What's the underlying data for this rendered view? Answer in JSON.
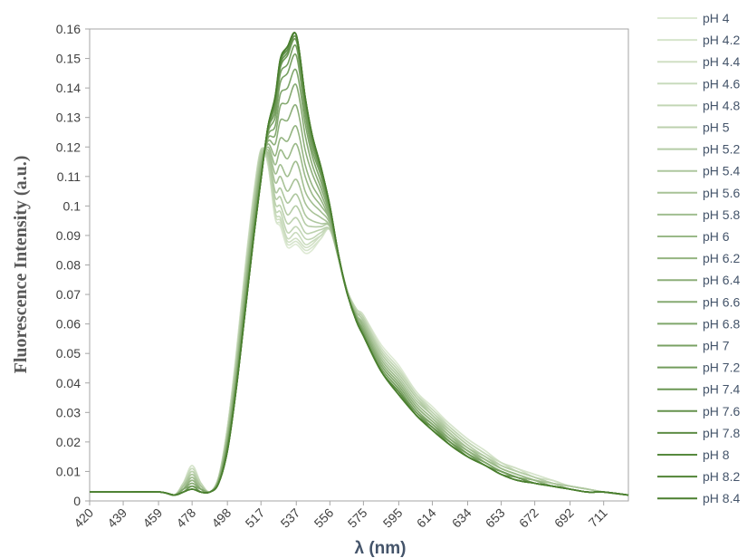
{
  "chart_data": {
    "type": "line",
    "title": "",
    "xlabel": "λ (nm)",
    "ylabel": "Fluorescence Intensity (a.u.)",
    "xlim": [
      420,
      725
    ],
    "ylim": [
      0,
      0.16
    ],
    "yticks": [
      0,
      0.01,
      0.02,
      0.03,
      0.04,
      0.05,
      0.06,
      0.07,
      0.08,
      0.09,
      0.1,
      0.11,
      0.12,
      0.13,
      0.14,
      0.15,
      0.16
    ],
    "yticklabels": [
      "0",
      "0.01",
      "0.02",
      "0.03",
      "0.04",
      "0.05",
      "0.06",
      "0.07",
      "0.08",
      "0.09",
      "0.1",
      "0.11",
      "0.12",
      "0.13",
      "0.14",
      "0.15",
      "0.16"
    ],
    "xticks": [
      420,
      439,
      459,
      478,
      498,
      517,
      537,
      556,
      575,
      595,
      614,
      634,
      653,
      672,
      692,
      711
    ],
    "xticklabels": [
      "420",
      "439",
      "459",
      "478",
      "498",
      "517",
      "537",
      "556",
      "575",
      "595",
      "614",
      "634",
      "653",
      "672",
      "692",
      "711"
    ],
    "grid": false,
    "legend_position": "right",
    "colors": {
      "light": "#dde9d3",
      "dark": "#4a7f2f"
    },
    "x": [
      420,
      440,
      460,
      468,
      473,
      478,
      483,
      488,
      493,
      498,
      503,
      508,
      513,
      517,
      521,
      525,
      528,
      532,
      537,
      542,
      546,
      551,
      556,
      561,
      566,
      571,
      575,
      585,
      595,
      605,
      614,
      624,
      634,
      644,
      653,
      662,
      672,
      682,
      692,
      702,
      711,
      725
    ],
    "series": [
      {
        "name": "pH 4",
        "values": [
          0.003,
          0.003,
          0.003,
          0.002,
          0.006,
          0.012,
          0.006,
          0.003,
          0.008,
          0.025,
          0.05,
          0.079,
          0.105,
          0.119,
          0.114,
          0.096,
          0.093,
          0.086,
          0.087,
          0.084,
          0.085,
          0.089,
          0.092,
          0.082,
          0.071,
          0.065,
          0.063,
          0.053,
          0.046,
          0.037,
          0.032,
          0.026,
          0.021,
          0.017,
          0.013,
          0.011,
          0.009,
          0.007,
          0.005,
          0.004,
          0.003,
          0.002
        ]
      },
      {
        "name": "pH 4.2",
        "values": [
          0.003,
          0.003,
          0.003,
          0.002,
          0.006,
          0.012,
          0.006,
          0.003,
          0.008,
          0.025,
          0.05,
          0.079,
          0.104,
          0.119,
          0.114,
          0.096,
          0.094,
          0.087,
          0.088,
          0.085,
          0.086,
          0.089,
          0.092,
          0.082,
          0.071,
          0.065,
          0.063,
          0.052,
          0.045,
          0.037,
          0.031,
          0.026,
          0.021,
          0.017,
          0.013,
          0.011,
          0.009,
          0.007,
          0.005,
          0.004,
          0.003,
          0.002
        ]
      },
      {
        "name": "pH 4.4",
        "values": [
          0.003,
          0.003,
          0.003,
          0.002,
          0.006,
          0.011,
          0.006,
          0.003,
          0.008,
          0.025,
          0.049,
          0.078,
          0.104,
          0.119,
          0.114,
          0.097,
          0.095,
          0.088,
          0.089,
          0.086,
          0.087,
          0.09,
          0.092,
          0.082,
          0.071,
          0.065,
          0.063,
          0.052,
          0.045,
          0.036,
          0.031,
          0.025,
          0.02,
          0.016,
          0.013,
          0.011,
          0.008,
          0.007,
          0.005,
          0.004,
          0.003,
          0.002
        ]
      },
      {
        "name": "pH 4.6",
        "values": [
          0.003,
          0.003,
          0.003,
          0.002,
          0.006,
          0.011,
          0.006,
          0.003,
          0.008,
          0.024,
          0.049,
          0.078,
          0.104,
          0.119,
          0.115,
          0.098,
          0.096,
          0.089,
          0.091,
          0.087,
          0.088,
          0.09,
          0.092,
          0.082,
          0.071,
          0.065,
          0.062,
          0.051,
          0.044,
          0.036,
          0.031,
          0.025,
          0.02,
          0.016,
          0.013,
          0.01,
          0.008,
          0.006,
          0.005,
          0.004,
          0.003,
          0.002
        ]
      },
      {
        "name": "pH 4.8",
        "values": [
          0.003,
          0.003,
          0.003,
          0.002,
          0.006,
          0.01,
          0.006,
          0.003,
          0.008,
          0.024,
          0.048,
          0.077,
          0.103,
          0.119,
          0.115,
          0.099,
          0.098,
          0.091,
          0.093,
          0.089,
          0.089,
          0.091,
          0.092,
          0.082,
          0.071,
          0.065,
          0.062,
          0.051,
          0.044,
          0.036,
          0.03,
          0.025,
          0.02,
          0.016,
          0.012,
          0.01,
          0.008,
          0.006,
          0.005,
          0.004,
          0.003,
          0.002
        ]
      },
      {
        "name": "pH 5",
        "values": [
          0.003,
          0.003,
          0.003,
          0.002,
          0.005,
          0.01,
          0.005,
          0.003,
          0.008,
          0.024,
          0.048,
          0.076,
          0.102,
          0.118,
          0.116,
          0.101,
          0.1,
          0.094,
          0.096,
          0.091,
          0.091,
          0.092,
          0.092,
          0.082,
          0.071,
          0.064,
          0.062,
          0.05,
          0.043,
          0.035,
          0.03,
          0.024,
          0.019,
          0.015,
          0.012,
          0.01,
          0.008,
          0.006,
          0.005,
          0.004,
          0.003,
          0.002
        ]
      },
      {
        "name": "pH 5.2",
        "values": [
          0.003,
          0.003,
          0.003,
          0.002,
          0.005,
          0.009,
          0.005,
          0.003,
          0.008,
          0.023,
          0.047,
          0.075,
          0.101,
          0.118,
          0.116,
          0.103,
          0.103,
          0.097,
          0.1,
          0.094,
          0.093,
          0.093,
          0.093,
          0.082,
          0.071,
          0.064,
          0.061,
          0.05,
          0.043,
          0.035,
          0.029,
          0.024,
          0.019,
          0.015,
          0.012,
          0.01,
          0.008,
          0.006,
          0.005,
          0.004,
          0.003,
          0.002
        ]
      },
      {
        "name": "pH 5.4",
        "values": [
          0.003,
          0.003,
          0.003,
          0.002,
          0.005,
          0.009,
          0.005,
          0.003,
          0.007,
          0.023,
          0.046,
          0.074,
          0.1,
          0.117,
          0.117,
          0.105,
          0.106,
          0.101,
          0.104,
          0.097,
          0.095,
          0.094,
          0.093,
          0.082,
          0.071,
          0.064,
          0.061,
          0.049,
          0.042,
          0.034,
          0.029,
          0.023,
          0.018,
          0.015,
          0.011,
          0.009,
          0.007,
          0.006,
          0.005,
          0.004,
          0.003,
          0.002
        ]
      },
      {
        "name": "pH 5.6",
        "values": [
          0.003,
          0.003,
          0.003,
          0.002,
          0.005,
          0.008,
          0.005,
          0.003,
          0.007,
          0.022,
          0.045,
          0.073,
          0.099,
          0.116,
          0.118,
          0.108,
          0.11,
          0.105,
          0.109,
          0.101,
          0.098,
          0.096,
          0.093,
          0.082,
          0.07,
          0.063,
          0.06,
          0.048,
          0.041,
          0.033,
          0.028,
          0.023,
          0.018,
          0.014,
          0.011,
          0.009,
          0.007,
          0.006,
          0.004,
          0.003,
          0.003,
          0.002
        ]
      },
      {
        "name": "pH 5.8",
        "values": [
          0.003,
          0.003,
          0.003,
          0.002,
          0.004,
          0.008,
          0.004,
          0.003,
          0.007,
          0.022,
          0.044,
          0.072,
          0.098,
          0.115,
          0.119,
          0.111,
          0.114,
          0.11,
          0.115,
          0.105,
          0.101,
          0.098,
          0.094,
          0.082,
          0.07,
          0.063,
          0.06,
          0.048,
          0.041,
          0.033,
          0.028,
          0.022,
          0.018,
          0.014,
          0.011,
          0.009,
          0.007,
          0.005,
          0.004,
          0.003,
          0.003,
          0.002
        ]
      },
      {
        "name": "pH 6",
        "values": [
          0.003,
          0.003,
          0.003,
          0.002,
          0.004,
          0.007,
          0.004,
          0.003,
          0.007,
          0.021,
          0.043,
          0.071,
          0.097,
          0.114,
          0.12,
          0.114,
          0.119,
          0.116,
          0.121,
          0.11,
          0.104,
          0.1,
          0.095,
          0.082,
          0.07,
          0.063,
          0.059,
          0.047,
          0.04,
          0.032,
          0.027,
          0.022,
          0.017,
          0.014,
          0.011,
          0.009,
          0.007,
          0.005,
          0.004,
          0.003,
          0.003,
          0.002
        ]
      },
      {
        "name": "pH 6.2",
        "values": [
          0.003,
          0.003,
          0.003,
          0.002,
          0.004,
          0.007,
          0.004,
          0.003,
          0.007,
          0.021,
          0.043,
          0.07,
          0.096,
          0.114,
          0.121,
          0.117,
          0.123,
          0.122,
          0.127,
          0.114,
          0.107,
          0.102,
          0.095,
          0.082,
          0.07,
          0.063,
          0.059,
          0.047,
          0.04,
          0.032,
          0.027,
          0.021,
          0.017,
          0.013,
          0.01,
          0.008,
          0.007,
          0.005,
          0.004,
          0.003,
          0.003,
          0.002
        ]
      },
      {
        "name": "pH 6.4",
        "values": [
          0.003,
          0.003,
          0.003,
          0.002,
          0.004,
          0.006,
          0.004,
          0.003,
          0.007,
          0.02,
          0.042,
          0.069,
          0.095,
          0.113,
          0.122,
          0.121,
          0.129,
          0.129,
          0.134,
          0.119,
          0.111,
          0.104,
          0.096,
          0.082,
          0.07,
          0.062,
          0.058,
          0.046,
          0.039,
          0.031,
          0.026,
          0.021,
          0.017,
          0.013,
          0.01,
          0.008,
          0.006,
          0.005,
          0.004,
          0.003,
          0.003,
          0.002
        ]
      },
      {
        "name": "pH 6.6",
        "values": [
          0.003,
          0.003,
          0.003,
          0.002,
          0.004,
          0.006,
          0.004,
          0.003,
          0.007,
          0.02,
          0.041,
          0.068,
          0.094,
          0.112,
          0.123,
          0.124,
          0.134,
          0.135,
          0.141,
          0.124,
          0.114,
          0.106,
          0.097,
          0.082,
          0.07,
          0.062,
          0.058,
          0.046,
          0.039,
          0.031,
          0.026,
          0.021,
          0.016,
          0.013,
          0.01,
          0.008,
          0.006,
          0.005,
          0.004,
          0.003,
          0.003,
          0.002
        ]
      },
      {
        "name": "pH 6.8",
        "values": [
          0.003,
          0.003,
          0.003,
          0.002,
          0.004,
          0.005,
          0.004,
          0.003,
          0.006,
          0.019,
          0.04,
          0.067,
          0.093,
          0.111,
          0.124,
          0.127,
          0.138,
          0.14,
          0.146,
          0.128,
          0.117,
          0.108,
          0.098,
          0.083,
          0.07,
          0.062,
          0.057,
          0.045,
          0.038,
          0.03,
          0.026,
          0.02,
          0.016,
          0.013,
          0.01,
          0.008,
          0.006,
          0.005,
          0.004,
          0.003,
          0.003,
          0.002
        ]
      },
      {
        "name": "pH 7",
        "values": [
          0.003,
          0.003,
          0.003,
          0.002,
          0.003,
          0.005,
          0.003,
          0.003,
          0.006,
          0.019,
          0.04,
          0.066,
          0.092,
          0.11,
          0.125,
          0.13,
          0.142,
          0.145,
          0.151,
          0.131,
          0.119,
          0.11,
          0.098,
          0.083,
          0.07,
          0.062,
          0.057,
          0.045,
          0.038,
          0.03,
          0.025,
          0.02,
          0.016,
          0.012,
          0.01,
          0.008,
          0.006,
          0.005,
          0.004,
          0.003,
          0.003,
          0.002
        ]
      },
      {
        "name": "pH 7.2",
        "values": [
          0.003,
          0.003,
          0.003,
          0.002,
          0.003,
          0.005,
          0.003,
          0.003,
          0.006,
          0.018,
          0.039,
          0.065,
          0.091,
          0.11,
          0.126,
          0.132,
          0.145,
          0.148,
          0.154,
          0.133,
          0.121,
          0.111,
          0.099,
          0.083,
          0.07,
          0.062,
          0.057,
          0.044,
          0.037,
          0.03,
          0.025,
          0.02,
          0.016,
          0.012,
          0.01,
          0.008,
          0.006,
          0.005,
          0.004,
          0.003,
          0.003,
          0.002
        ]
      },
      {
        "name": "pH 7.4",
        "values": [
          0.003,
          0.003,
          0.003,
          0.002,
          0.003,
          0.004,
          0.003,
          0.003,
          0.006,
          0.018,
          0.039,
          0.065,
          0.091,
          0.109,
          0.126,
          0.134,
          0.147,
          0.151,
          0.156,
          0.135,
          0.122,
          0.112,
          0.099,
          0.083,
          0.07,
          0.061,
          0.056,
          0.044,
          0.037,
          0.029,
          0.025,
          0.02,
          0.015,
          0.012,
          0.009,
          0.008,
          0.006,
          0.005,
          0.004,
          0.003,
          0.003,
          0.002
        ]
      },
      {
        "name": "pH 7.6",
        "values": [
          0.003,
          0.003,
          0.003,
          0.002,
          0.003,
          0.004,
          0.003,
          0.003,
          0.006,
          0.018,
          0.038,
          0.064,
          0.09,
          0.109,
          0.127,
          0.135,
          0.148,
          0.152,
          0.157,
          0.136,
          0.123,
          0.112,
          0.099,
          0.083,
          0.07,
          0.061,
          0.056,
          0.044,
          0.037,
          0.029,
          0.025,
          0.019,
          0.015,
          0.012,
          0.009,
          0.007,
          0.006,
          0.005,
          0.004,
          0.003,
          0.003,
          0.002
        ]
      },
      {
        "name": "pH 7.8",
        "values": [
          0.003,
          0.003,
          0.003,
          0.002,
          0.003,
          0.004,
          0.003,
          0.003,
          0.006,
          0.017,
          0.038,
          0.064,
          0.09,
          0.109,
          0.127,
          0.136,
          0.149,
          0.153,
          0.158,
          0.137,
          0.124,
          0.113,
          0.1,
          0.083,
          0.07,
          0.061,
          0.056,
          0.044,
          0.037,
          0.029,
          0.024,
          0.019,
          0.015,
          0.012,
          0.009,
          0.007,
          0.006,
          0.005,
          0.004,
          0.003,
          0.003,
          0.002
        ]
      },
      {
        "name": "pH 8",
        "values": [
          0.003,
          0.003,
          0.003,
          0.002,
          0.003,
          0.004,
          0.003,
          0.003,
          0.006,
          0.017,
          0.038,
          0.064,
          0.09,
          0.109,
          0.127,
          0.136,
          0.149,
          0.154,
          0.158,
          0.137,
          0.124,
          0.113,
          0.1,
          0.083,
          0.07,
          0.061,
          0.056,
          0.044,
          0.036,
          0.029,
          0.024,
          0.019,
          0.015,
          0.012,
          0.009,
          0.007,
          0.006,
          0.005,
          0.004,
          0.003,
          0.003,
          0.002
        ]
      },
      {
        "name": "pH 8.2",
        "values": [
          0.003,
          0.003,
          0.003,
          0.002,
          0.003,
          0.004,
          0.003,
          0.003,
          0.006,
          0.017,
          0.038,
          0.064,
          0.09,
          0.109,
          0.127,
          0.137,
          0.15,
          0.154,
          0.158,
          0.137,
          0.124,
          0.113,
          0.1,
          0.083,
          0.07,
          0.061,
          0.056,
          0.044,
          0.036,
          0.029,
          0.024,
          0.019,
          0.015,
          0.012,
          0.009,
          0.007,
          0.006,
          0.005,
          0.004,
          0.003,
          0.003,
          0.002
        ]
      },
      {
        "name": "pH 8.4",
        "values": [
          0.003,
          0.003,
          0.003,
          0.002,
          0.003,
          0.004,
          0.003,
          0.003,
          0.006,
          0.017,
          0.038,
          0.064,
          0.09,
          0.109,
          0.127,
          0.137,
          0.15,
          0.154,
          0.158,
          0.137,
          0.124,
          0.113,
          0.1,
          0.083,
          0.07,
          0.061,
          0.056,
          0.044,
          0.036,
          0.029,
          0.024,
          0.019,
          0.015,
          0.012,
          0.009,
          0.007,
          0.006,
          0.005,
          0.004,
          0.003,
          0.003,
          0.002
        ]
      }
    ]
  }
}
